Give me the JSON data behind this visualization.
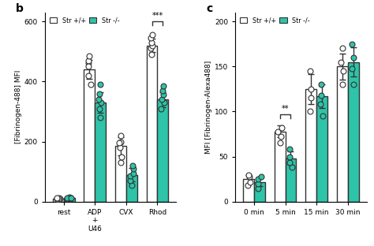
{
  "panel_b": {
    "title": "b",
    "ylabel": "[Fibrinogen-488] MFI",
    "ylim": [
      0,
      630
    ],
    "yticks": [
      0,
      200,
      400,
      600
    ],
    "categories": [
      "rest",
      "ADP\n+\nU46",
      "CVX",
      "Rhod"
    ],
    "bar_wt": [
      10,
      440,
      185,
      520
    ],
    "bar_ko": [
      12,
      330,
      90,
      340
    ],
    "dots_wt": {
      "rest": [
        8,
        10,
        12,
        9,
        11,
        13
      ],
      "ADP\n+\nU46": [
        390,
        420,
        460,
        470,
        450,
        485
      ],
      "CVX": [
        130,
        150,
        180,
        200,
        220,
        195
      ],
      "Rhod": [
        490,
        510,
        520,
        530,
        545,
        555
      ]
    },
    "dots_ko": {
      "rest": [
        10,
        13,
        15,
        11,
        12,
        14
      ],
      "ADP\n+\nU46": [
        280,
        310,
        330,
        340,
        360,
        390
      ],
      "CVX": [
        55,
        70,
        85,
        95,
        110,
        120
      ],
      "Rhod": [
        310,
        330,
        340,
        355,
        370,
        385
      ]
    },
    "color_wt": "#ffffff",
    "color_ko": "#2ec4a9",
    "edgecolor": "#333333",
    "significance": {
      "Rhod": "***"
    },
    "legend_labels": [
      "Str +/+",
      "Str -/-"
    ]
  },
  "panel_c": {
    "title": "c",
    "ylabel": "MFI [Fibrinogen-Alexa488]",
    "ylim": [
      0,
      210
    ],
    "yticks": [
      0,
      50,
      100,
      150,
      200
    ],
    "categories": [
      "0 min",
      "5 min",
      "15 min",
      "30 min"
    ],
    "bar_wt": [
      25,
      78,
      125,
      150
    ],
    "bar_ko": [
      22,
      48,
      117,
      155
    ],
    "dots_wt": {
      "0 min": [
        18,
        22,
        28,
        30
      ],
      "5 min": [
        65,
        72,
        78,
        82
      ],
      "15 min": [
        100,
        115,
        125,
        145
      ],
      "30 min": [
        130,
        145,
        155,
        170
      ]
    },
    "dots_ko": {
      "0 min": [
        15,
        20,
        25,
        28
      ],
      "5 min": [
        38,
        44,
        50,
        58
      ],
      "15 min": [
        95,
        108,
        118,
        130
      ],
      "30 min": [
        130,
        148,
        160,
        175
      ]
    },
    "color_wt": "#ffffff",
    "color_ko": "#2ec4a9",
    "edgecolor": "#333333",
    "significance": {
      "5 min": "**"
    },
    "legend_labels": [
      "Str +/+",
      "Str -/-"
    ]
  },
  "background": "#ffffff",
  "bar_width": 0.35,
  "dot_size": 25,
  "linewidth": 1.0,
  "error_capsize": 3
}
